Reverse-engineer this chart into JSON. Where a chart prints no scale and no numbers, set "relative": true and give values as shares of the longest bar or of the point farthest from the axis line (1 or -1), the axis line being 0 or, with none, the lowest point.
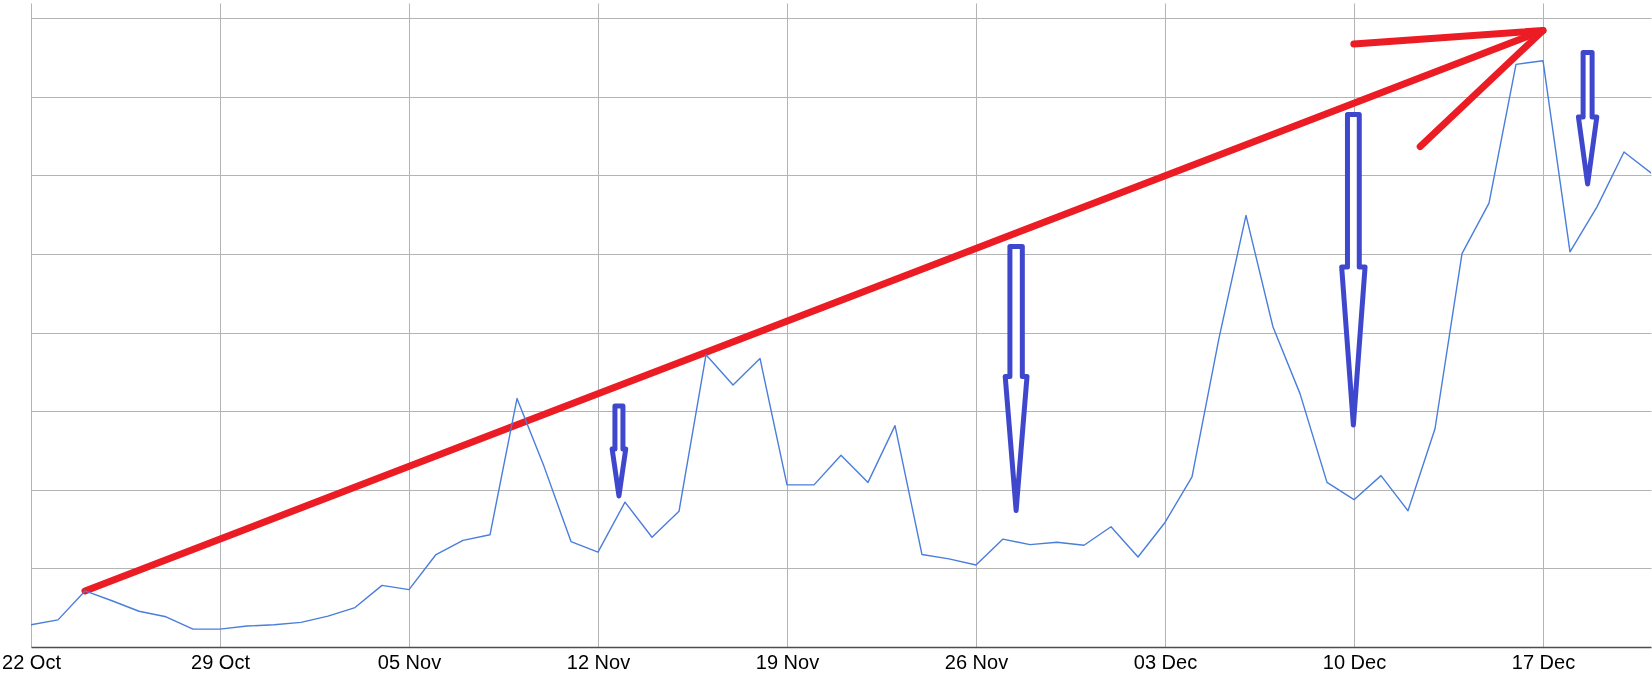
{
  "chart_data": {
    "type": "line",
    "relative": true,
    "grid": true,
    "x": [
      "--10-22",
      "--10-23",
      "--10-24",
      "--10-25",
      "--10-26",
      "--10-27",
      "--10-28",
      "--10-29",
      "--10-30",
      "--10-31",
      "--11-01",
      "--11-02",
      "--11-03",
      "--11-04",
      "--11-05",
      "--11-06",
      "--11-07",
      "--11-08",
      "--11-09",
      "--11-10",
      "--11-11",
      "--11-12",
      "--11-13",
      "--11-14",
      "--11-15",
      "--11-16",
      "--11-17",
      "--11-18",
      "--11-19",
      "--11-20",
      "--11-21",
      "--11-22",
      "--11-23",
      "--11-24",
      "--11-25",
      "--11-26",
      "--11-27",
      "--11-28",
      "--11-29",
      "--11-30",
      "--12-01",
      "--12-02",
      "--12-03",
      "--12-04",
      "--12-05",
      "--12-06",
      "--12-07",
      "--12-08",
      "--12-09",
      "--12-10",
      "--12-11",
      "--12-12",
      "--12-13",
      "--12-14",
      "--12-15",
      "--12-16",
      "--12-17",
      "--12-18",
      "--12-19",
      "--12-20",
      "--12-21"
    ],
    "xlim": [
      "--10-22",
      "--12-21"
    ],
    "xticks": [
      {
        "value": "--10-22",
        "label": "22 Oct"
      },
      {
        "value": "--10-29",
        "label": "29 Oct"
      },
      {
        "value": "--11-05",
        "label": "05 Nov"
      },
      {
        "value": "--11-12",
        "label": "12 Nov"
      },
      {
        "value": "--11-19",
        "label": "19 Nov"
      },
      {
        "value": "--11-26",
        "label": "26 Nov"
      },
      {
        "value": "--12-03",
        "label": "03 Dec"
      },
      {
        "value": "--12-10",
        "label": "10 Dec"
      },
      {
        "value": "--12-17",
        "label": "17 Dec"
      }
    ],
    "series": [
      {
        "type": "line",
        "color": "#ec1c24",
        "x": [
          "--10-24",
          "--12-17"
        ],
        "values": [
          0.091,
          1
        ]
      },
      {
        "color": "#4a7edb",
        "values": [
          0.036,
          0.044,
          0.091,
          0.075,
          0.058,
          0.049,
          0.029,
          0.029,
          0.034,
          0.036,
          0.04,
          0.05,
          0.064,
          0.1,
          0.093,
          0.15,
          0.173,
          0.182,
          0.403,
          0.293,
          0.171,
          0.154,
          0.235,
          0.178,
          0.22,
          0.474,
          0.425,
          0.468,
          0.263,
          0.263,
          0.311,
          0.267,
          0.359,
          0.15,
          0.143,
          0.133,
          0.175,
          0.166,
          0.17,
          0.165,
          0.195,
          0.146,
          0.202,
          0.276,
          0.501,
          0.7,
          0.519,
          0.411,
          0.267,
          0.239,
          0.278,
          0.221,
          0.354,
          0.638,
          0.72,
          0.945,
          0.951,
          0.641,
          0.714,
          0.803,
          0.769
        ]
      }
    ]
  }
}
